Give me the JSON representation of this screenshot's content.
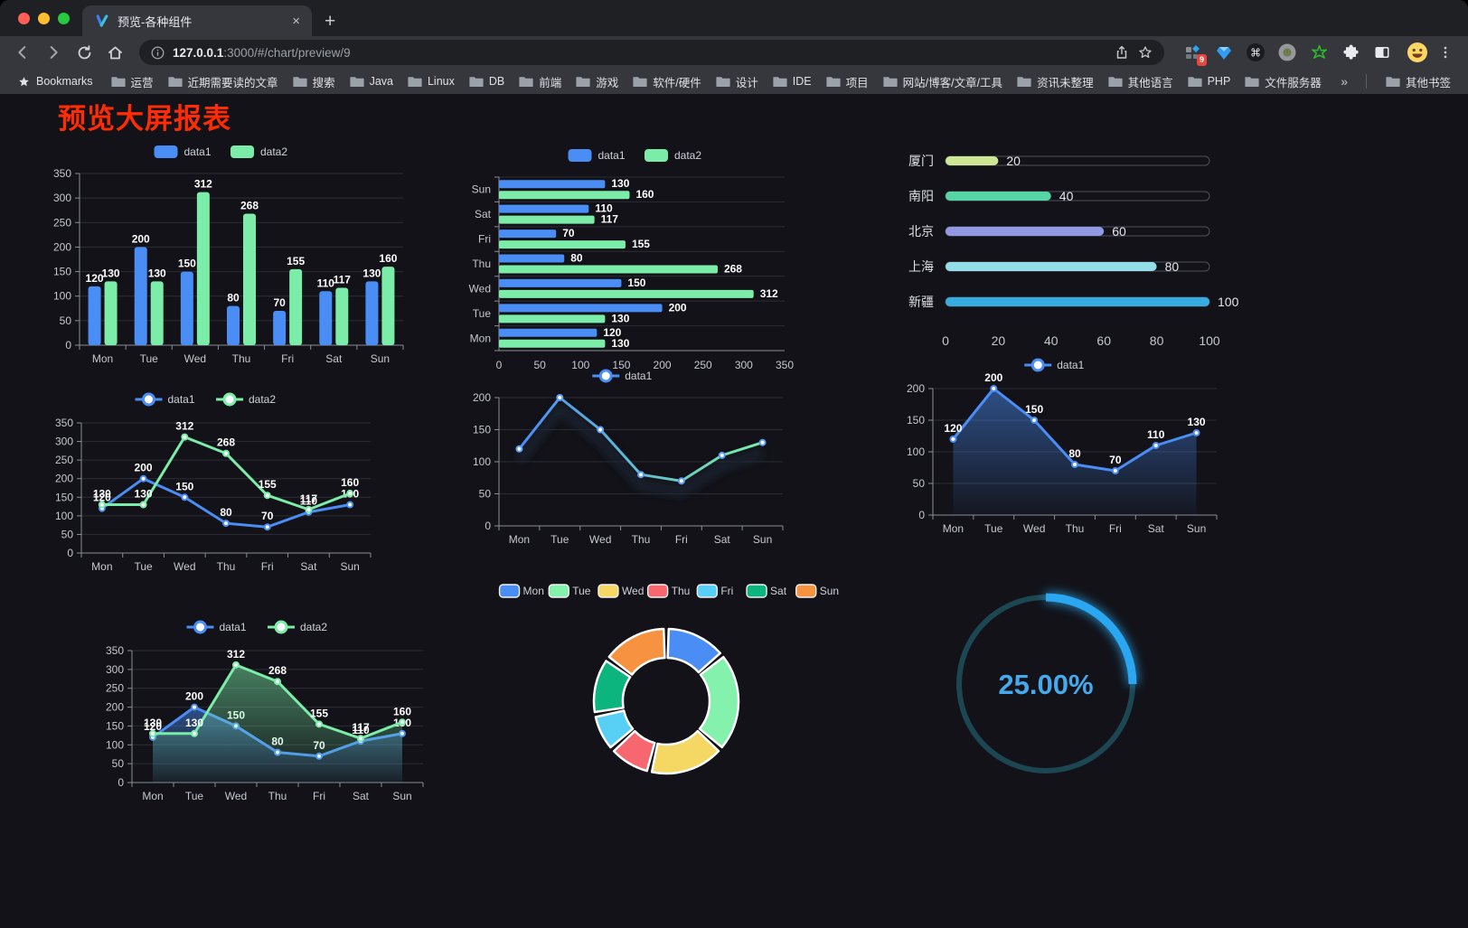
{
  "browser": {
    "tab_title": "预览-各种组件",
    "close_tab_label": "×",
    "new_tab_label": "+",
    "url": {
      "host": "127.0.0.1",
      "rest": ":3000/#/chart/preview/9"
    },
    "extensions_badge": "9",
    "bookmarks_label": "Bookmarks",
    "bookmark_folders": [
      "运营",
      "近期需要读的文章",
      "搜索",
      "Java",
      "Linux",
      "DB",
      "前端",
      "游戏",
      "软件/硬件",
      "设计",
      "IDE",
      "项目",
      "网站/博客/文章/工具",
      "资讯未整理",
      "其他语言",
      "PHP",
      "文件服务器"
    ],
    "bookmarks_overflow": "»",
    "other_bookmarks_label": "其他书签"
  },
  "page": {
    "title": "预览大屏报表",
    "title_color": "#fe2c05",
    "background": "#121218"
  },
  "chart_data": [
    {
      "id": "bar-grouped",
      "type": "bar",
      "categories": [
        "Mon",
        "Tue",
        "Wed",
        "Thu",
        "Fri",
        "Sat",
        "Sun"
      ],
      "series": [
        {
          "name": "data1",
          "color": "#4a8df5",
          "values": [
            120,
            200,
            150,
            80,
            70,
            110,
            130
          ]
        },
        {
          "name": "data2",
          "color": "#7beda8",
          "values": [
            130,
            130,
            312,
            268,
            155,
            117,
            160
          ]
        }
      ],
      "ylim": [
        0,
        350
      ],
      "ystep": 50,
      "legend_position": "top",
      "grid": true
    },
    {
      "id": "bar-horizontal",
      "type": "bar",
      "orientation": "horizontal",
      "categories": [
        "Mon",
        "Tue",
        "Wed",
        "Thu",
        "Fri",
        "Sat",
        "Sun"
      ],
      "series": [
        {
          "name": "data1",
          "color": "#4a8df5",
          "values": [
            120,
            200,
            150,
            80,
            70,
            110,
            130
          ]
        },
        {
          "name": "data2",
          "color": "#7beda8",
          "values": [
            130,
            130,
            312,
            268,
            155,
            117,
            160
          ]
        }
      ],
      "xlim": [
        0,
        350
      ],
      "xstep": 50,
      "legend_position": "top",
      "note": "categories listed bottom-to-top (Mon at bottom)"
    },
    {
      "id": "progress-bars",
      "type": "bar",
      "orientation": "horizontal",
      "categories": [
        "厦门",
        "南阳",
        "北京",
        "上海",
        "新疆"
      ],
      "values": [
        20,
        40,
        60,
        80,
        100
      ],
      "colors": [
        "#cde795",
        "#55d6a4",
        "#9199e5",
        "#93dee8",
        "#38abe0"
      ],
      "xlim": [
        0,
        100
      ],
      "xstep": 20
    },
    {
      "id": "line-two-series",
      "type": "line",
      "categories": [
        "Mon",
        "Tue",
        "Wed",
        "Thu",
        "Fri",
        "Sat",
        "Sun"
      ],
      "series": [
        {
          "name": "data1",
          "color": "#4a8df5",
          "values": [
            120,
            200,
            150,
            80,
            70,
            110,
            130
          ]
        },
        {
          "name": "data2",
          "color": "#7beda8",
          "values": [
            130,
            130,
            312,
            268,
            155,
            117,
            160
          ]
        }
      ],
      "ylim": [
        0,
        350
      ],
      "ystep": 50,
      "legend_position": "top"
    },
    {
      "id": "line-gradient",
      "type": "line",
      "categories": [
        "Mon",
        "Tue",
        "Wed",
        "Thu",
        "Fri",
        "Sat",
        "Sun"
      ],
      "series": [
        {
          "name": "data1",
          "color": "#4a8df5",
          "color_start": "#4a8df5",
          "color_end": "#7beda8",
          "values": [
            120,
            200,
            150,
            80,
            70,
            110,
            130
          ]
        }
      ],
      "ylim": [
        0,
        200
      ],
      "ystep": 50,
      "legend_position": "top"
    },
    {
      "id": "area-single",
      "type": "area",
      "categories": [
        "Mon",
        "Tue",
        "Wed",
        "Thu",
        "Fri",
        "Sat",
        "Sun"
      ],
      "series": [
        {
          "name": "data1",
          "color": "#4a8df5",
          "values": [
            120,
            200,
            150,
            80,
            70,
            110,
            130
          ]
        }
      ],
      "ylim": [
        0,
        200
      ],
      "ystep": 50,
      "legend_position": "top"
    },
    {
      "id": "area-two-series",
      "type": "area",
      "categories": [
        "Mon",
        "Tue",
        "Wed",
        "Thu",
        "Fri",
        "Sat",
        "Sun"
      ],
      "series": [
        {
          "name": "data1",
          "color": "#4a8df5",
          "values": [
            120,
            200,
            150,
            80,
            70,
            110,
            130
          ]
        },
        {
          "name": "data2",
          "color": "#7beda8",
          "values": [
            130,
            130,
            312,
            268,
            155,
            117,
            160
          ]
        }
      ],
      "ylim": [
        0,
        350
      ],
      "ystep": 50,
      "legend_position": "top"
    },
    {
      "id": "donut",
      "type": "pie",
      "categories": [
        "Mon",
        "Tue",
        "Wed",
        "Thu",
        "Fri",
        "Sat",
        "Sun"
      ],
      "values": [
        120,
        200,
        150,
        80,
        70,
        110,
        130
      ],
      "colors": [
        "#4a8df5",
        "#84f2ad",
        "#f5d863",
        "#f7676f",
        "#58cff5",
        "#0cb57e",
        "#f79240"
      ],
      "legend_position": "top"
    },
    {
      "id": "gauge",
      "type": "gauge",
      "value": 25,
      "label": "25.00%",
      "color": "#2aa7f0",
      "track_color": "#1d4653",
      "text_color": "#45a9ec"
    }
  ]
}
